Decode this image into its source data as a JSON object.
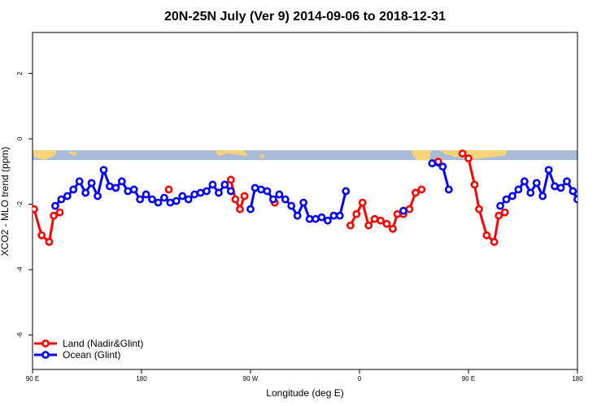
{
  "chart_data": {
    "type": "line",
    "title": "20N-25N July (Ver 9)   2014-09-06 to 2018-12-31",
    "xlabel": "Longitude (deg E)",
    "ylabel": "XCO2 - MLO trend (ppm)",
    "xlim": [
      90,
      450
    ],
    "ylim": [
      -7.05,
      3.25
    ],
    "x_ticks": [
      {
        "value": 90,
        "label": "90 E"
      },
      {
        "value": 162,
        "label": "180"
      },
      {
        "value": 234,
        "label": "90 W"
      },
      {
        "value": 306,
        "label": "0"
      },
      {
        "value": 378,
        "label": "90 E"
      },
      {
        "value": 450,
        "label": "180"
      }
    ],
    "y_ticks": [
      {
        "value": 2,
        "label": "2"
      },
      {
        "value": 0,
        "label": "0"
      },
      {
        "value": -2,
        "label": "-2"
      },
      {
        "value": -4,
        "label": "-4"
      },
      {
        "value": -6,
        "label": "-6"
      }
    ],
    "grid": false,
    "legend_position": "bottom-left",
    "series": [
      {
        "name": "Land (Nadir&Glint)",
        "color": "#ff0000",
        "segments": [
          [
            [
              91,
              -2.15
            ],
            [
              96,
              -2.95
            ],
            [
              101,
              -3.15
            ],
            [
              104,
              -2.35
            ],
            [
              108,
              -2.25
            ]
          ],
          [
            [
              180,
              -1.55
            ]
          ],
          [
            [
              221,
              -1.25
            ],
            [
              224,
              -1.85
            ],
            [
              227,
              -2.15
            ],
            [
              230,
              -1.75
            ]
          ],
          [
            [
              250,
              -1.95
            ]
          ],
          [
            [
              300,
              -2.65
            ],
            [
              304,
              -2.3
            ],
            [
              308,
              -1.95
            ],
            [
              312,
              -2.65
            ],
            [
              316,
              -2.45
            ],
            [
              320,
              -2.5
            ],
            [
              324,
              -2.6
            ],
            [
              328,
              -2.75
            ],
            [
              331,
              -2.3
            ],
            [
              335,
              -2.3
            ]
          ],
          [
            [
              339,
              -2.15
            ],
            [
              343,
              -1.65
            ],
            [
              347,
              -1.55
            ]
          ],
          [
            [
              358,
              -0.7
            ]
          ],
          [
            [
              374,
              -0.45
            ],
            [
              378,
              -0.6
            ],
            [
              382,
              -1.4
            ],
            [
              385,
              -2.15
            ],
            [
              390,
              -2.95
            ],
            [
              395,
              -3.15
            ],
            [
              398,
              -2.35
            ],
            [
              402,
              -2.25
            ]
          ]
        ]
      },
      {
        "name": "Ocean (Glint)",
        "color": "#0000ff",
        "segments": [
          [
            [
              105,
              -2.05
            ],
            [
              109,
              -1.85
            ],
            [
              113,
              -1.75
            ],
            [
              117,
              -1.55
            ],
            [
              121,
              -1.3
            ],
            [
              125,
              -1.65
            ],
            [
              129,
              -1.35
            ],
            [
              133,
              -1.75
            ],
            [
              137,
              -0.95
            ],
            [
              141,
              -1.45
            ],
            [
              145,
              -1.5
            ],
            [
              149,
              -1.3
            ],
            [
              153,
              -1.6
            ],
            [
              157,
              -1.55
            ],
            [
              161,
              -1.85
            ],
            [
              165,
              -1.7
            ],
            [
              169,
              -1.85
            ],
            [
              173,
              -1.95
            ],
            [
              177,
              -1.8
            ],
            [
              181,
              -1.95
            ],
            [
              185,
              -1.9
            ],
            [
              189,
              -1.75
            ],
            [
              193,
              -1.85
            ],
            [
              197,
              -1.7
            ],
            [
              201,
              -1.65
            ],
            [
              205,
              -1.6
            ],
            [
              209,
              -1.4
            ],
            [
              213,
              -1.65
            ],
            [
              217,
              -1.4
            ],
            [
              221,
              -1.6
            ]
          ],
          [
            [
              234,
              -2.15
            ],
            [
              237,
              -1.5
            ],
            [
              241,
              -1.55
            ],
            [
              245,
              -1.6
            ],
            [
              249,
              -1.85
            ],
            [
              253,
              -1.7
            ],
            [
              257,
              -1.85
            ],
            [
              261,
              -2.05
            ],
            [
              265,
              -2.35
            ],
            [
              269,
              -1.95
            ],
            [
              273,
              -2.45
            ],
            [
              277,
              -2.45
            ],
            [
              281,
              -2.4
            ],
            [
              285,
              -2.5
            ],
            [
              289,
              -2.35
            ],
            [
              293,
              -2.35
            ],
            [
              297,
              -1.6
            ]
          ],
          [
            [
              335,
              -2.2
            ]
          ],
          [
            [
              354,
              -0.75
            ],
            [
              361,
              -0.85
            ],
            [
              365,
              -1.55
            ]
          ],
          [
            [
              399,
              -2.05
            ],
            [
              403,
              -1.85
            ],
            [
              407,
              -1.75
            ],
            [
              411,
              -1.55
            ],
            [
              415,
              -1.3
            ],
            [
              419,
              -1.65
            ],
            [
              423,
              -1.35
            ],
            [
              427,
              -1.75
            ],
            [
              431,
              -0.95
            ],
            [
              435,
              -1.45
            ],
            [
              439,
              -1.5
            ],
            [
              443,
              -1.3
            ],
            [
              447,
              -1.6
            ],
            [
              450,
              -1.85
            ]
          ]
        ]
      }
    ],
    "map_strip": {
      "y_top": -0.35,
      "y_bottom": -0.65,
      "ocean_color": "#a8bcd8",
      "land_color": "#f5d37a"
    }
  }
}
